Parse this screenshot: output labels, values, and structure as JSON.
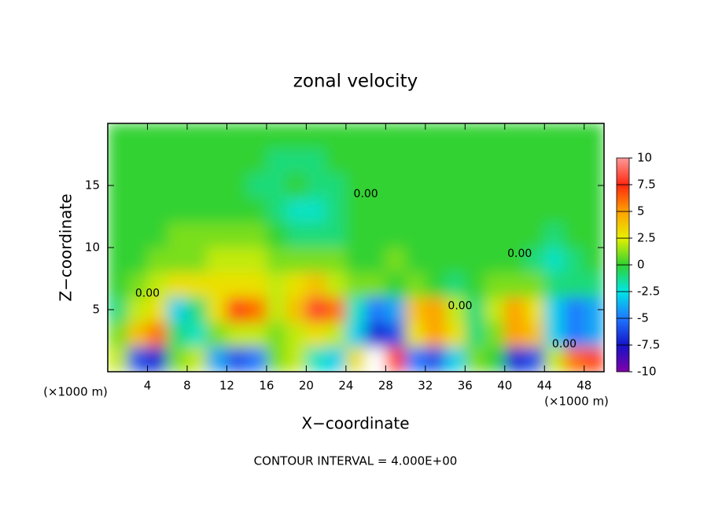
{
  "chart_data": {
    "type": "heatmap",
    "title": "zonal velocity",
    "x_label": "X−coordinate",
    "y_label": "Z−coordinate",
    "x_unit": "(×1000 m)",
    "y_unit": "(×1000 m)",
    "footer": "CONTOUR INTERVAL = 4.000E+00",
    "x": [
      0,
      2,
      4,
      6,
      8,
      10,
      12,
      14,
      16,
      18,
      20,
      22,
      24,
      26,
      28,
      30,
      32,
      34,
      36,
      38,
      40,
      42,
      44,
      46,
      48,
      50
    ],
    "y": [
      0,
      2,
      4,
      6,
      8,
      10,
      12,
      14,
      16,
      18,
      20
    ],
    "values": [
      [
        2,
        -6,
        -7,
        1,
        2,
        -4,
        -6,
        -5,
        1,
        2,
        -2,
        -3,
        3,
        10,
        8,
        -5,
        -6,
        -3,
        1,
        0,
        -7,
        -6,
        2,
        6,
        7
      ],
      [
        1,
        4,
        6,
        -1,
        -2,
        1,
        2,
        2,
        1,
        2,
        3,
        2,
        -3,
        -7,
        -6,
        3,
        5,
        3,
        -1,
        1,
        5,
        4,
        -3,
        -5,
        -4
      ],
      [
        -1,
        2,
        3,
        -3,
        -1,
        3,
        7,
        6,
        2,
        4,
        8,
        6,
        -2,
        -5,
        -4,
        4,
        5,
        2,
        -1,
        2,
        5,
        3,
        -3,
        -5,
        -4
      ],
      [
        0,
        1,
        2,
        3,
        3,
        3,
        3,
        3,
        2,
        3,
        4,
        2,
        1,
        1,
        0,
        1,
        0,
        -1,
        0,
        1,
        1,
        1,
        -1,
        -1,
        -1
      ],
      [
        0,
        0,
        1,
        1,
        1,
        2,
        2,
        2,
        1,
        1,
        1,
        1,
        0,
        0,
        1,
        0,
        0,
        0,
        0,
        0,
        0,
        -1,
        -2,
        -1,
        0
      ],
      [
        0,
        0,
        0,
        1,
        1,
        1,
        1,
        1,
        0,
        -1,
        -1,
        -1,
        0,
        0,
        0,
        0,
        0,
        0,
        0,
        0,
        0,
        0,
        -1,
        0,
        0
      ],
      [
        0,
        0,
        0,
        0,
        0,
        0,
        0,
        0,
        -1,
        -2,
        -2,
        -1,
        0,
        0,
        0,
        0,
        0,
        0,
        0,
        0,
        0,
        0,
        0,
        0,
        0
      ],
      [
        0,
        0,
        0,
        0,
        0,
        0,
        0,
        -1,
        -1,
        0,
        -1,
        -1,
        0,
        0,
        0,
        0,
        0,
        0,
        0,
        0,
        0,
        0,
        0,
        0,
        0
      ],
      [
        0,
        0,
        0,
        0,
        0,
        0,
        0,
        0,
        -1,
        -1,
        -1,
        0,
        0,
        0,
        0,
        0,
        0,
        0,
        0,
        0,
        0,
        0,
        0,
        0,
        0
      ],
      [
        0,
        0,
        0,
        0,
        0,
        0,
        0,
        0,
        0,
        0,
        0,
        0,
        0,
        0,
        0,
        0,
        0,
        0,
        0,
        0,
        0,
        0,
        0,
        0,
        0
      ]
    ],
    "xlim": [
      0,
      50
    ],
    "ylim": [
      0,
      20
    ],
    "xticks": [
      4,
      8,
      12,
      16,
      20,
      24,
      28,
      32,
      36,
      40,
      44,
      48
    ],
    "yticks": [
      5,
      10,
      15
    ],
    "colorbar": {
      "ticks": [
        -10,
        -7.5,
        -5,
        -2.5,
        0,
        2.5,
        5,
        7.5,
        10
      ],
      "colors": [
        "#8000a8",
        "#1414c8",
        "#1e78ff",
        "#00e6e6",
        "#30d230",
        "#e6f000",
        "#ffa000",
        "#ff2810",
        "#ff9898"
      ]
    },
    "annotations": [
      {
        "text": "0.00",
        "x": 26,
        "y": 14.3
      },
      {
        "text": "0.00",
        "x": 4,
        "y": 6.3
      },
      {
        "text": "0.00",
        "x": 41.5,
        "y": 9.5
      },
      {
        "text": "0.00",
        "x": 35.5,
        "y": 5.3
      },
      {
        "text": "0.00",
        "x": 46,
        "y": 2.2
      }
    ]
  }
}
